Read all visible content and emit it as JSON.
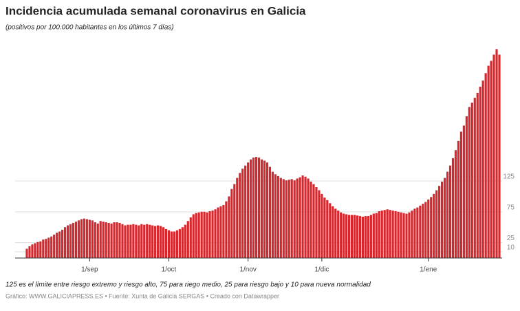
{
  "chart_data": {
    "type": "bar",
    "title": "Incidencia acumulada semanal coronavirus en Galicia",
    "subtitle": "(positivos por 100.000 habitantes en los últimos 7 días)",
    "note": "125 es el límite entre riesgo extremo y riesgo alto, 75 para riego medio, 25 para riesgo bajo y 10 para nueva normalidad",
    "source": "Gráfico: WWW.GALICIAPRESS.ES • Fuente: Xunta de Galicia SERGAS • Creado con Datawrapper",
    "color": "#d7262c",
    "grid": true,
    "ylim": [
      0,
      345
    ],
    "yticks": [
      10,
      25,
      75,
      125
    ],
    "categories": [
      null,
      null,
      null,
      null,
      null,
      null,
      null,
      null,
      null,
      null,
      null,
      null,
      null,
      null,
      null,
      null,
      null,
      null,
      null,
      null,
      null,
      null,
      null,
      "1/sep",
      null,
      null,
      null,
      null,
      null,
      null,
      null,
      null,
      null,
      null,
      null,
      null,
      null,
      null,
      null,
      null,
      null,
      null,
      null,
      null,
      null,
      null,
      null,
      null,
      null,
      null,
      null,
      null,
      "1/oct",
      null,
      null,
      null,
      null,
      null,
      null,
      null,
      null,
      null,
      null,
      null,
      null,
      null,
      null,
      null,
      null,
      null,
      null,
      null,
      null,
      null,
      null,
      null,
      null,
      null,
      null,
      null,
      null,
      "1/nov",
      null,
      null,
      null,
      null,
      null,
      null,
      null,
      null,
      null,
      null,
      null,
      null,
      null,
      null,
      null,
      null,
      null,
      null,
      null,
      null,
      null,
      null,
      null,
      null,
      null,
      null,
      "1/dic",
      null,
      null,
      null,
      null,
      null,
      null,
      null,
      null,
      null,
      null,
      null,
      null,
      null,
      null,
      null,
      null,
      null,
      null,
      null,
      null,
      null,
      null,
      null,
      null,
      null,
      null,
      null,
      null,
      null,
      null,
      null,
      null,
      null,
      null,
      null,
      null,
      null,
      null,
      "1/ene",
      null,
      null,
      null,
      null,
      null,
      null,
      null,
      null,
      null,
      null,
      null,
      null,
      null,
      null,
      null,
      null,
      null,
      null,
      null,
      null,
      null,
      null,
      null,
      null,
      null,
      null
    ],
    "values": [
      15,
      19,
      22,
      24,
      26,
      27,
      30,
      31,
      33,
      35,
      38,
      41,
      43,
      46,
      50,
      53,
      55,
      57,
      59,
      61,
      63,
      64,
      63,
      62,
      61,
      58,
      56,
      60,
      59,
      58,
      57,
      56,
      58,
      58,
      57,
      55,
      53,
      54,
      54,
      55,
      54,
      53,
      55,
      54,
      55,
      54,
      53,
      52,
      53,
      52,
      50,
      47,
      45,
      43,
      43,
      45,
      47,
      50,
      54,
      60,
      66,
      71,
      73,
      74,
      75,
      75,
      74,
      76,
      77,
      79,
      82,
      84,
      86,
      92,
      100,
      112,
      120,
      130,
      138,
      145,
      150,
      155,
      160,
      163,
      164,
      163,
      160,
      158,
      155,
      148,
      140,
      136,
      133,
      130,
      128,
      126,
      127,
      128,
      126,
      129,
      131,
      134,
      132,
      129,
      124,
      120,
      115,
      110,
      104,
      98,
      94,
      89,
      84,
      80,
      77,
      74,
      72,
      71,
      70,
      70,
      70,
      69,
      68,
      67,
      68,
      68,
      70,
      72,
      73,
      76,
      77,
      78,
      79,
      78,
      77,
      76,
      75,
      74,
      73,
      72,
      74,
      77,
      80,
      82,
      85,
      88,
      91,
      95,
      99,
      104,
      110,
      117,
      124,
      130,
      140,
      150,
      162,
      175,
      190,
      205,
      215,
      230,
      245,
      252,
      260,
      268,
      278,
      288,
      300,
      312,
      320,
      330,
      339,
      330
    ]
  }
}
